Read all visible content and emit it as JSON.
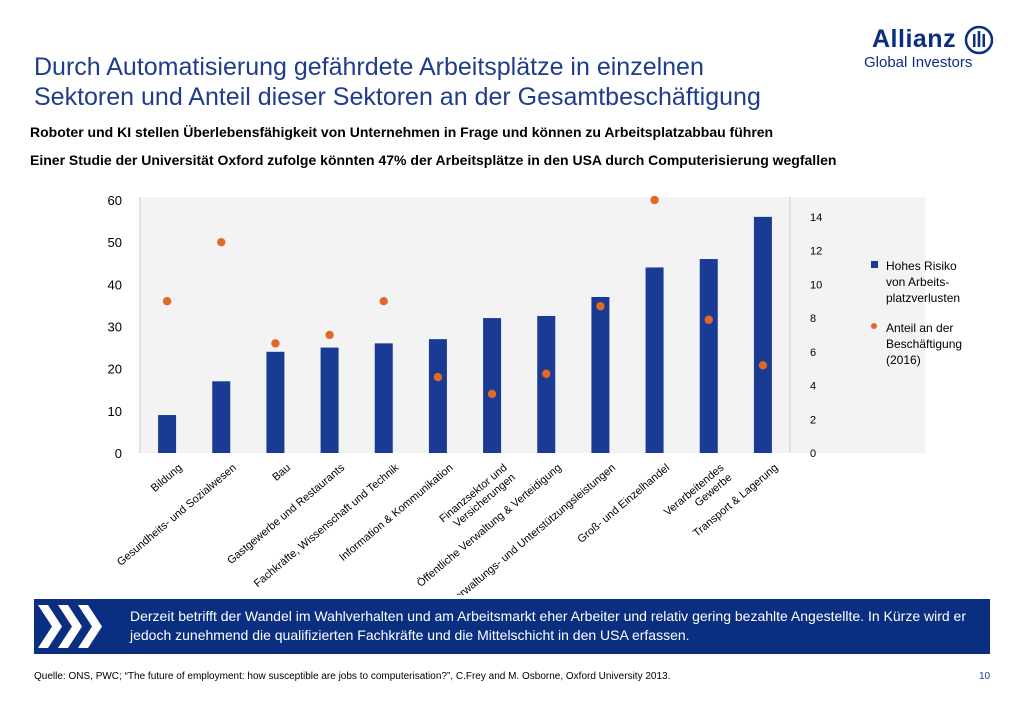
{
  "slide": {
    "title_line1": "Durch Automatisierung gefährdete Arbeitsplätze in einzelnen",
    "title_line2": "Sektoren und Anteil dieser Sektoren an der Gesamtbeschäftigung",
    "subtitle1": "Roboter und KI stellen Überlebensfähigkeit von Unternehmen in Frage und können zu Arbeitsplatzabbau führen",
    "subtitle2": "Einer Studie der Universität Oxford zufolge könnten 47% der Arbeitsplätze in den USA durch Computerisierung wegfallen",
    "banner_text": "Derzeit betrifft der Wandel im Wahlverhalten und am Arbeitsmarkt eher Arbeiter und relativ gering bezahlte Angestellte. In Kürze wird er jedoch zunehmend die qualifizierten Fachkräfte und die Mittelschicht in den USA erfassen.",
    "source_label": "Quelle:",
    "source_text": " ONS, PWC; “The future of employment: how susceptible are jobs to computerisation?”, C.Frey and M. Osborne, Oxford University 2013.",
    "page_number": "10"
  },
  "logo": {
    "name": "Allianz",
    "sub": "Global Investors"
  },
  "colors": {
    "title": "#1f3d8a",
    "bar": "#1a3b93",
    "dot": "#e06a25",
    "banner": "#0a2f80"
  },
  "chart_data": {
    "type": "bar",
    "categories": [
      "Bildung",
      "Gesundheits- und Sozialwesen",
      "Bau",
      "Gastgewerbe und Restaurants",
      "Fachkräfte, Wissenschaft und Technik",
      "Information & Kommunikation",
      "Finanzsektor und Versicherungen",
      "Öffentliche Verwaltung & Verteidigung",
      "Verwaltungs- und Unterstützungsleistungen",
      "Groß- und Einzelhandel",
      "Verarbeitendes Gewerbe",
      "Transport & Lagerung"
    ],
    "series": [
      {
        "name": "Hohes Risiko von Arbeits-platzverlusten",
        "type": "bar",
        "axis": "left",
        "values": [
          9,
          17,
          24,
          25,
          26,
          27,
          32,
          32.5,
          37,
          44,
          46,
          56
        ]
      },
      {
        "name": "Anteil an der Beschäftigung (2016)",
        "type": "scatter",
        "axis": "right",
        "values": [
          9,
          12.5,
          6.5,
          7,
          9,
          4.5,
          3.5,
          4.7,
          8.7,
          15,
          7.9,
          5.2
        ]
      }
    ],
    "left_axis": {
      "ylim": [
        0,
        60
      ],
      "ticks": [
        "0",
        "10",
        "20",
        "30",
        "40",
        "50",
        "60"
      ]
    },
    "right_axis": {
      "ylim": [
        0,
        15
      ],
      "ticks": [
        "0",
        "2",
        "4",
        "6",
        "8",
        "10",
        "12",
        "14"
      ]
    },
    "legend": {
      "position": "right",
      "bar_lines": [
        "Hohes Risiko",
        "von Arbeits-",
        "platzverlusten"
      ],
      "dot_lines": [
        "Anteil an der",
        "Beschäftigung",
        "(2016)"
      ]
    },
    "label_lines": [
      [
        "Bildung"
      ],
      [
        "Gesundheits- und Sozialwesen"
      ],
      [
        "Bau"
      ],
      [
        "Gastgewerbe und Restaurants"
      ],
      [
        "Fachkräfte, Wissenschaft und Technik"
      ],
      [
        "Information & Kommunikation"
      ],
      [
        "Finanzsektor und",
        "Versicherungen"
      ],
      [
        "Öffentliche Verwaltung & Verteidigung"
      ],
      [
        "Verwaltungs- und Unterstützungsleistungen"
      ],
      [
        "Groß- und Einzelhandel"
      ],
      [
        "Verarbeitendes",
        "Gewerbe"
      ],
      [
        "Transport & Lagerung"
      ]
    ],
    "grid": false
  }
}
